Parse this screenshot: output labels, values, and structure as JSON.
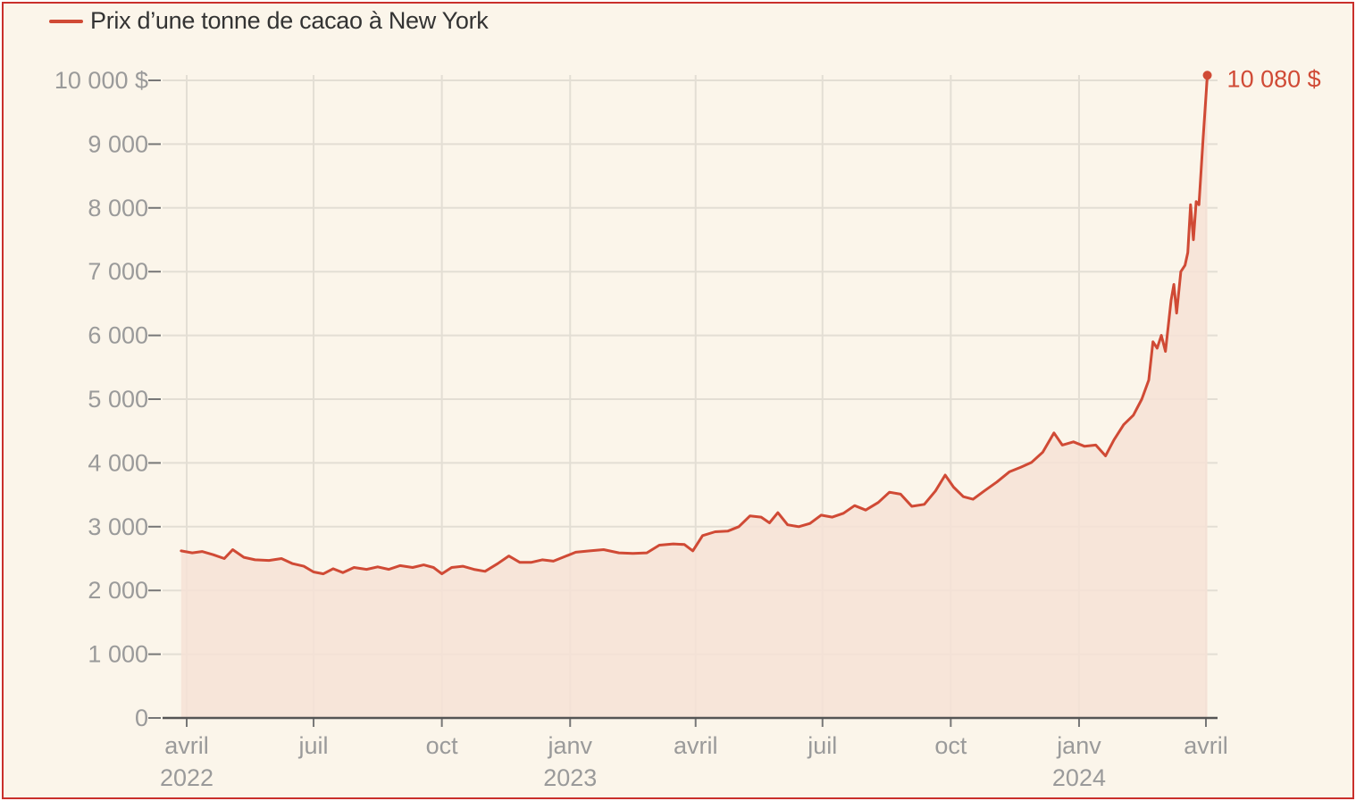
{
  "colors": {
    "line": "#d04a35",
    "area": "#f6e2d6",
    "grid": "#e3ded4",
    "axis": "#555555",
    "tick_text": "#9a9a9a",
    "background": "#fbf5ea",
    "frame": "#c9302c"
  },
  "chart_data": {
    "type": "area",
    "series": [
      {
        "name": "Prix d’une tonne de cacao à New York",
        "points": [
          [
            "2022-03-28",
            2620
          ],
          [
            "2022-04-05",
            2590
          ],
          [
            "2022-04-12",
            2610
          ],
          [
            "2022-04-20",
            2560
          ],
          [
            "2022-04-28",
            2500
          ],
          [
            "2022-05-04",
            2640
          ],
          [
            "2022-05-12",
            2520
          ],
          [
            "2022-05-20",
            2480
          ],
          [
            "2022-05-30",
            2470
          ],
          [
            "2022-06-08",
            2500
          ],
          [
            "2022-06-16",
            2420
          ],
          [
            "2022-06-24",
            2380
          ],
          [
            "2022-07-01",
            2290
          ],
          [
            "2022-07-08",
            2260
          ],
          [
            "2022-07-15",
            2340
          ],
          [
            "2022-07-22",
            2280
          ],
          [
            "2022-07-30",
            2360
          ],
          [
            "2022-08-08",
            2330
          ],
          [
            "2022-08-16",
            2370
          ],
          [
            "2022-08-24",
            2330
          ],
          [
            "2022-09-01",
            2390
          ],
          [
            "2022-09-10",
            2360
          ],
          [
            "2022-09-18",
            2400
          ],
          [
            "2022-09-25",
            2360
          ],
          [
            "2022-10-01",
            2260
          ],
          [
            "2022-10-08",
            2360
          ],
          [
            "2022-10-16",
            2380
          ],
          [
            "2022-10-24",
            2330
          ],
          [
            "2022-11-01",
            2300
          ],
          [
            "2022-11-10",
            2420
          ],
          [
            "2022-11-18",
            2540
          ],
          [
            "2022-11-26",
            2440
          ],
          [
            "2022-12-04",
            2440
          ],
          [
            "2022-12-12",
            2480
          ],
          [
            "2022-12-20",
            2460
          ],
          [
            "2022-12-28",
            2530
          ],
          [
            "2023-01-05",
            2600
          ],
          [
            "2023-01-15",
            2620
          ],
          [
            "2023-01-25",
            2640
          ],
          [
            "2023-02-05",
            2590
          ],
          [
            "2023-02-15",
            2580
          ],
          [
            "2023-02-25",
            2590
          ],
          [
            "2023-03-06",
            2710
          ],
          [
            "2023-03-16",
            2730
          ],
          [
            "2023-03-24",
            2720
          ],
          [
            "2023-03-30",
            2620
          ],
          [
            "2023-04-06",
            2860
          ],
          [
            "2023-04-15",
            2920
          ],
          [
            "2023-04-24",
            2930
          ],
          [
            "2023-05-02",
            3000
          ],
          [
            "2023-05-10",
            3170
          ],
          [
            "2023-05-18",
            3150
          ],
          [
            "2023-05-24",
            3060
          ],
          [
            "2023-05-30",
            3220
          ],
          [
            "2023-06-06",
            3030
          ],
          [
            "2023-06-14",
            3000
          ],
          [
            "2023-06-22",
            3050
          ],
          [
            "2023-06-30",
            3180
          ],
          [
            "2023-07-08",
            3150
          ],
          [
            "2023-07-16",
            3210
          ],
          [
            "2023-07-24",
            3330
          ],
          [
            "2023-08-01",
            3260
          ],
          [
            "2023-08-10",
            3380
          ],
          [
            "2023-08-18",
            3540
          ],
          [
            "2023-08-26",
            3510
          ],
          [
            "2023-09-03",
            3320
          ],
          [
            "2023-09-12",
            3350
          ],
          [
            "2023-09-20",
            3560
          ],
          [
            "2023-09-27",
            3810
          ],
          [
            "2023-10-03",
            3620
          ],
          [
            "2023-10-10",
            3470
          ],
          [
            "2023-10-17",
            3430
          ],
          [
            "2023-10-25",
            3560
          ],
          [
            "2023-11-03",
            3700
          ],
          [
            "2023-11-12",
            3860
          ],
          [
            "2023-11-20",
            3930
          ],
          [
            "2023-11-28",
            4010
          ],
          [
            "2023-12-06",
            4170
          ],
          [
            "2023-12-14",
            4470
          ],
          [
            "2023-12-20",
            4280
          ],
          [
            "2023-12-28",
            4330
          ],
          [
            "2024-01-05",
            4260
          ],
          [
            "2024-01-13",
            4280
          ],
          [
            "2024-01-20",
            4110
          ],
          [
            "2024-01-26",
            4360
          ],
          [
            "2024-02-02",
            4600
          ],
          [
            "2024-02-09",
            4750
          ],
          [
            "2024-02-15",
            5000
          ],
          [
            "2024-02-20",
            5300
          ],
          [
            "2024-02-23",
            5900
          ],
          [
            "2024-02-26",
            5800
          ],
          [
            "2024-02-29",
            6000
          ],
          [
            "2024-03-03",
            5750
          ],
          [
            "2024-03-07",
            6550
          ],
          [
            "2024-03-09",
            6800
          ],
          [
            "2024-03-11",
            6350
          ],
          [
            "2024-03-14",
            7000
          ],
          [
            "2024-03-17",
            7100
          ],
          [
            "2024-03-19",
            7300
          ],
          [
            "2024-03-21",
            8050
          ],
          [
            "2024-03-23",
            7500
          ],
          [
            "2024-03-25",
            8100
          ],
          [
            "2024-03-27",
            8050
          ],
          [
            "2024-03-30",
            9100
          ],
          [
            "2024-04-02",
            10080
          ]
        ]
      }
    ],
    "last_value_label": "10 080 $",
    "ylim": [
      0,
      10000
    ],
    "y_ticks": [
      {
        "value": 0,
        "label": "0"
      },
      {
        "value": 1000,
        "label": "1 000"
      },
      {
        "value": 2000,
        "label": "2 000"
      },
      {
        "value": 3000,
        "label": "3 000"
      },
      {
        "value": 4000,
        "label": "4 000"
      },
      {
        "value": 5000,
        "label": "5 000"
      },
      {
        "value": 6000,
        "label": "6 000"
      },
      {
        "value": 7000,
        "label": "7 000"
      },
      {
        "value": 8000,
        "label": "8 000"
      },
      {
        "value": 9000,
        "label": "9 000"
      },
      {
        "value": 10000,
        "label": "10 000 $"
      }
    ],
    "x_ticks": [
      {
        "date": "2022-04-01",
        "label": "avril",
        "year": "2022"
      },
      {
        "date": "2022-07-01",
        "label": "juil",
        "year": ""
      },
      {
        "date": "2022-10-01",
        "label": "oct",
        "year": ""
      },
      {
        "date": "2023-01-01",
        "label": "janv",
        "year": "2023"
      },
      {
        "date": "2023-04-01",
        "label": "avril",
        "year": ""
      },
      {
        "date": "2023-07-01",
        "label": "juil",
        "year": ""
      },
      {
        "date": "2023-10-01",
        "label": "oct",
        "year": ""
      },
      {
        "date": "2024-01-01",
        "label": "janv",
        "year": "2024"
      },
      {
        "date": "2024-04-01",
        "label": "avril",
        "year": ""
      }
    ],
    "grid": true,
    "legend": "top-left"
  }
}
